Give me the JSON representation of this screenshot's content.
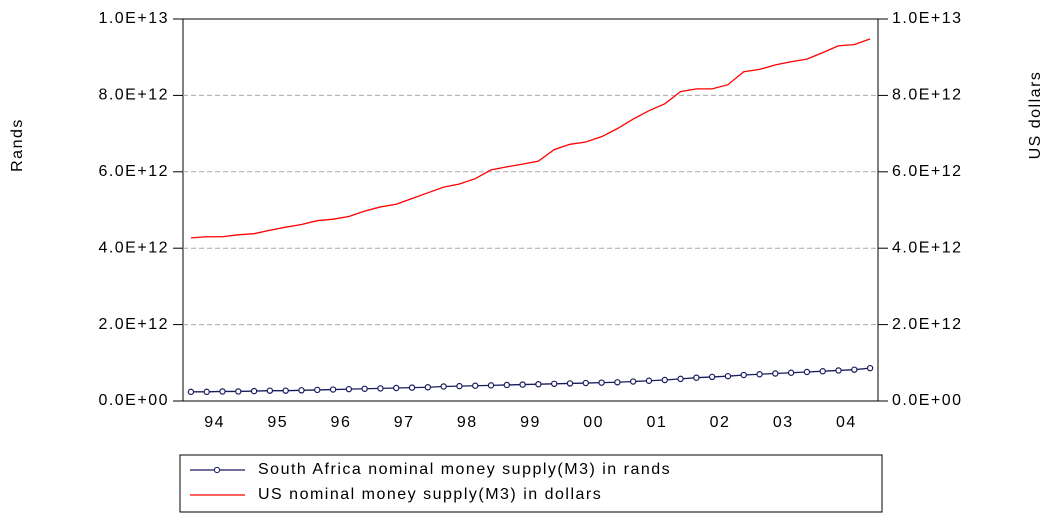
{
  "chart_data": {
    "type": "line",
    "y_label": "Rands",
    "y2_label": "US dollars",
    "categories": [
      null,
      "94",
      null,
      null,
      null,
      "95",
      null,
      null,
      null,
      "96",
      null,
      null,
      null,
      "97",
      null,
      null,
      null,
      "98",
      null,
      null,
      null,
      "99",
      null,
      null,
      null,
      "00",
      null,
      null,
      null,
      "01",
      null,
      null,
      null,
      "02",
      null,
      null,
      null,
      "03",
      null,
      null,
      null,
      "04",
      null,
      null
    ],
    "series": [
      {
        "name": "South Africa nominal money supply(M3) in rands",
        "color": "#1a1a5e",
        "axis": "y",
        "marker": "circle",
        "values": [
          240000000000.0,
          240000000000.0,
          250000000000.0,
          250000000000.0,
          260000000000.0,
          270000000000.0,
          270000000000.0,
          280000000000.0,
          290000000000.0,
          300000000000.0,
          310000000000.0,
          320000000000.0,
          330000000000.0,
          340000000000.0,
          350000000000.0,
          360000000000.0,
          380000000000.0,
          390000000000.0,
          400000000000.0,
          410000000000.0,
          420000000000.0,
          430000000000.0,
          440000000000.0,
          450000000000.0,
          460000000000.0,
          470000000000.0,
          480000000000.0,
          490000000000.0,
          510000000000.0,
          530000000000.0,
          550000000000.0,
          580000000000.0,
          610000000000.0,
          630000000000.0,
          650000000000.0,
          680000000000.0,
          700000000000.0,
          720000000000.0,
          740000000000.0,
          760000000000.0,
          780000000000.0,
          800000000000.0,
          820000000000.0,
          860000000000.0
        ]
      },
      {
        "name": "US nominal money supply(M3) in dollars",
        "color": "#ff0000",
        "axis": "y2",
        "values": [
          4270000000000.0,
          4300000000000.0,
          4300000000000.0,
          4350000000000.0,
          4380000000000.0,
          4470000000000.0,
          4550000000000.0,
          4620000000000.0,
          4720000000000.0,
          4760000000000.0,
          4830000000000.0,
          4970000000000.0,
          5080000000000.0,
          5150000000000.0,
          5300000000000.0,
          5450000000000.0,
          5600000000000.0,
          5680000000000.0,
          5820000000000.0,
          6050000000000.0,
          6130000000000.0,
          6200000000000.0,
          6280000000000.0,
          6580000000000.0,
          6720000000000.0,
          6780000000000.0,
          6920000000000.0,
          7130000000000.0,
          7380000000000.0,
          7600000000000.0,
          7780000000000.0,
          8100000000000.0,
          8170000000000.0,
          8170000000000.0,
          8280000000000.0,
          8620000000000.0,
          8680000000000.0,
          8800000000000.0,
          8880000000000.0,
          8950000000000.0,
          9120000000000.0,
          9300000000000.0,
          9330000000000.0,
          9480000000000.0
        ]
      }
    ],
    "ylim": [
      0,
      10000000000000.0
    ],
    "yticks": [
      {
        "value": 0,
        "label": "0.0E+00"
      },
      {
        "value": 2000000000000.0,
        "label": "2.0E+12"
      },
      {
        "value": 4000000000000.0,
        "label": "4.0E+12"
      },
      {
        "value": 6000000000000.0,
        "label": "6.0E+12"
      },
      {
        "value": 8000000000000.0,
        "label": "8.0E+12"
      },
      {
        "value": 10000000000000.0,
        "label": "1.0E+13"
      }
    ],
    "y2lim": [
      0,
      10000000000000.0
    ],
    "y2ticks": [
      {
        "value": 0,
        "label": "0.0E+00"
      },
      {
        "value": 2000000000000.0,
        "label": "2.0E+12"
      },
      {
        "value": 4000000000000.0,
        "label": "4.0E+12"
      },
      {
        "value": 6000000000000.0,
        "label": "6.0E+12"
      },
      {
        "value": 8000000000000.0,
        "label": "8.0E+12"
      },
      {
        "value": 10000000000000.0,
        "label": "1.0E+13"
      }
    ],
    "grid": true,
    "legend": "bottom"
  }
}
